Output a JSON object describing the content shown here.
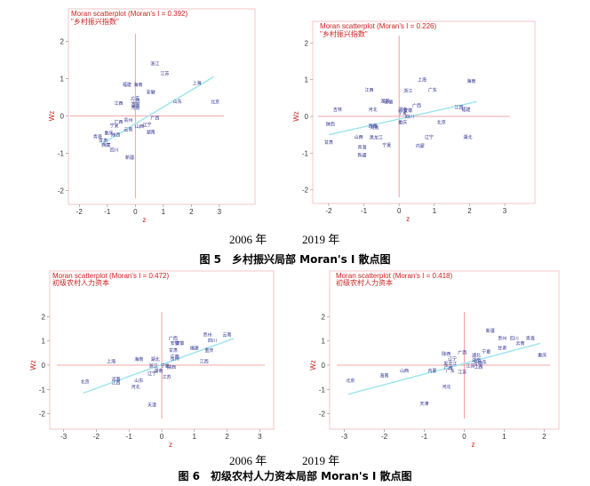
{
  "colors": {
    "frame": "#f3b9b9",
    "ref_lines": "#f08a8a",
    "fit_line": "#9be3ee",
    "points": "#2b2f8f",
    "title": "#cc2020"
  },
  "figure5": {
    "years_left": "2006 年",
    "years_right": "2019 年",
    "caption": "图 5　乡村振兴局部 Moran's I 散点图"
  },
  "figure6": {
    "years_left": "2006 年",
    "years_right": "2019 年",
    "caption": "图 6　初级农村人力资本局部 Moran's I 散点图"
  },
  "chart_data": [
    {
      "type": "scatter",
      "title": "Moran scatterplot (Moran's I = 0.392)",
      "subtitle": "\"乡村振兴指数\"",
      "xlabel": "z",
      "ylabel": "Wz",
      "xlim": [
        -2.2,
        3.1
      ],
      "ylim": [
        -2.2,
        2.2
      ],
      "xticks": [
        -2,
        -1,
        0,
        1,
        2,
        3
      ],
      "yticks": [
        -2,
        -1,
        0,
        1,
        2
      ],
      "fit": [
        [
          -1.2,
          -0.75
        ],
        [
          2.8,
          1.05
        ]
      ],
      "points": [
        {
          "x": 0.7,
          "y": 1.35,
          "label": "浙江"
        },
        {
          "x": 1.05,
          "y": 1.1,
          "label": "江苏"
        },
        {
          "x": -0.3,
          "y": 0.8,
          "label": "福建"
        },
        {
          "x": 0.1,
          "y": 0.8,
          "label": "海南"
        },
        {
          "x": 2.2,
          "y": 0.85,
          "label": "上海"
        },
        {
          "x": 0.55,
          "y": 0.6,
          "label": "安徽"
        },
        {
          "x": 0.0,
          "y": 0.43,
          "label": "广东"
        },
        {
          "x": 0.0,
          "y": 0.36,
          "label": "江西"
        },
        {
          "x": -0.6,
          "y": 0.3,
          "label": "江西"
        },
        {
          "x": 1.5,
          "y": 0.35,
          "label": "山东"
        },
        {
          "x": 2.85,
          "y": 0.33,
          "label": "北京"
        },
        {
          "x": 0.0,
          "y": 0.25,
          "label": "湖南"
        },
        {
          "x": 0.0,
          "y": 0.18,
          "label": "河南"
        },
        {
          "x": 0.7,
          "y": -0.1,
          "label": "广西"
        },
        {
          "x": -0.6,
          "y": -0.2,
          "label": "广西"
        },
        {
          "x": -0.25,
          "y": -0.15,
          "label": "贵州"
        },
        {
          "x": 0.42,
          "y": -0.27,
          "label": "辽宁"
        },
        {
          "x": 0.15,
          "y": -0.32,
          "label": "山西"
        },
        {
          "x": -0.75,
          "y": -0.3,
          "label": "宁夏"
        },
        {
          "x": -0.25,
          "y": -0.4,
          "label": "云南"
        },
        {
          "x": -0.95,
          "y": -0.5,
          "label": "重庆"
        },
        {
          "x": -0.7,
          "y": -0.55,
          "label": "陕西"
        },
        {
          "x": 0.55,
          "y": -0.48,
          "label": "湖南"
        },
        {
          "x": -1.35,
          "y": -0.6,
          "label": "青海"
        },
        {
          "x": -1.15,
          "y": -0.7,
          "label": "甘肃"
        },
        {
          "x": -1.05,
          "y": -0.82,
          "label": "西藏"
        },
        {
          "x": -0.75,
          "y": -0.95,
          "label": "四川"
        },
        {
          "x": -0.2,
          "y": -1.15,
          "label": "新疆"
        }
      ]
    },
    {
      "type": "scatter",
      "title": "Moran scatterplot (Moran's I = 0.226)",
      "subtitle": "\"乡村振兴指数\"",
      "xlabel": "z",
      "ylabel": "Wz",
      "xlim": [
        -2.2,
        3.1
      ],
      "ylim": [
        -2.2,
        2.2
      ],
      "xticks": [
        -2,
        -1,
        0,
        1,
        2,
        3
      ],
      "yticks": [
        -2,
        -1,
        0,
        1,
        2
      ],
      "fit": [
        [
          -2.0,
          -0.5
        ],
        [
          2.2,
          0.4
        ]
      ],
      "points": [
        {
          "x": 0.65,
          "y": 0.95,
          "label": "上海"
        },
        {
          "x": 2.05,
          "y": 0.92,
          "label": "海南"
        },
        {
          "x": -0.85,
          "y": 0.68,
          "label": "江西"
        },
        {
          "x": 0.25,
          "y": 0.65,
          "label": "浙江"
        },
        {
          "x": 0.95,
          "y": 0.68,
          "label": "广东"
        },
        {
          "x": -0.4,
          "y": 0.38,
          "label": "湖南"
        },
        {
          "x": -0.3,
          "y": 0.35,
          "label": "安徽"
        },
        {
          "x": 0.5,
          "y": 0.25,
          "label": "广西"
        },
        {
          "x": -1.75,
          "y": 0.15,
          "label": "吉林"
        },
        {
          "x": -0.75,
          "y": 0.15,
          "label": "河北"
        },
        {
          "x": 0.1,
          "y": 0.15,
          "label": "湖南"
        },
        {
          "x": 0.25,
          "y": 0.12,
          "label": "安徽"
        },
        {
          "x": 1.7,
          "y": 0.2,
          "label": "江西"
        },
        {
          "x": 1.9,
          "y": 0.15,
          "label": "福建"
        },
        {
          "x": 0.1,
          "y": 0.05,
          "label": "宁夏"
        },
        {
          "x": 0.3,
          "y": -0.05,
          "label": "四川"
        },
        {
          "x": 0.1,
          "y": -0.2,
          "label": "重庆"
        },
        {
          "x": 1.2,
          "y": -0.2,
          "label": "北京"
        },
        {
          "x": -1.95,
          "y": -0.25,
          "label": "陕西"
        },
        {
          "x": -0.75,
          "y": -0.3,
          "label": "西藏"
        },
        {
          "x": -0.7,
          "y": -0.35,
          "label": "河南"
        },
        {
          "x": 0.85,
          "y": -0.6,
          "label": "辽宁"
        },
        {
          "x": 1.95,
          "y": -0.6,
          "label": "湖北"
        },
        {
          "x": -1.15,
          "y": -0.6,
          "label": "山西"
        },
        {
          "x": -0.65,
          "y": -0.62,
          "label": "黑龙江"
        },
        {
          "x": -2.0,
          "y": -0.75,
          "label": "甘肃"
        },
        {
          "x": -0.35,
          "y": -0.82,
          "label": "宁夏"
        },
        {
          "x": -1.05,
          "y": -0.88,
          "label": "青海"
        },
        {
          "x": 0.6,
          "y": -0.85,
          "label": "内蒙"
        },
        {
          "x": -1.05,
          "y": -1.1,
          "label": "新疆"
        }
      ]
    },
    {
      "type": "scatter",
      "title": "Moran scatterplot (Moran's I = 0.472)",
      "subtitle": "初级农村人力资本",
      "xlabel": "z",
      "ylabel": "Wz",
      "xlim": [
        -3.1,
        3.1
      ],
      "ylim": [
        -2.2,
        2.2
      ],
      "xticks": [
        -3,
        -2,
        -1,
        0,
        1,
        2,
        3
      ],
      "yticks": [
        -2,
        -1,
        0,
        1,
        2
      ],
      "fit": [
        [
          -2.4,
          -1.15
        ],
        [
          2.2,
          1.1
        ]
      ],
      "points": [
        {
          "x": 0.35,
          "y": 1.05,
          "label": "广西"
        },
        {
          "x": 1.4,
          "y": 1.2,
          "label": "贵州"
        },
        {
          "x": 2.0,
          "y": 1.2,
          "label": "云南"
        },
        {
          "x": 1.55,
          "y": 0.95,
          "label": "四川"
        },
        {
          "x": 0.4,
          "y": 0.85,
          "label": "安徽"
        },
        {
          "x": 0.55,
          "y": 0.85,
          "label": "安徽"
        },
        {
          "x": 1.0,
          "y": 0.65,
          "label": "福建"
        },
        {
          "x": 1.45,
          "y": 0.55,
          "label": "重庆"
        },
        {
          "x": 0.35,
          "y": 0.55,
          "label": "甘肃"
        },
        {
          "x": 0.4,
          "y": 0.3,
          "label": "广西"
        },
        {
          "x": -1.55,
          "y": 0.1,
          "label": "上海"
        },
        {
          "x": -0.7,
          "y": 0.18,
          "label": "海南"
        },
        {
          "x": -0.2,
          "y": 0.18,
          "label": "湖北"
        },
        {
          "x": 0.4,
          "y": 0.2,
          "label": "贵州"
        },
        {
          "x": 1.3,
          "y": 0.1,
          "label": "江西"
        },
        {
          "x": -0.25,
          "y": -0.1,
          "label": "浙江"
        },
        {
          "x": 0.1,
          "y": -0.1,
          "label": "宁夏"
        },
        {
          "x": 0.3,
          "y": -0.15,
          "label": "陕西"
        },
        {
          "x": -0.1,
          "y": -0.3,
          "label": "湖南"
        },
        {
          "x": -0.3,
          "y": -0.4,
          "label": "辽宁"
        },
        {
          "x": 0.15,
          "y": -0.55,
          "label": "江苏"
        },
        {
          "x": -2.35,
          "y": -0.75,
          "label": "北京"
        },
        {
          "x": -1.4,
          "y": -0.65,
          "label": "河南"
        },
        {
          "x": -1.4,
          "y": -0.78,
          "label": "江西"
        },
        {
          "x": -0.7,
          "y": -0.7,
          "label": "山东"
        },
        {
          "x": -0.8,
          "y": -0.95,
          "label": "河北"
        },
        {
          "x": -0.3,
          "y": -1.7,
          "label": "天津"
        }
      ]
    },
    {
      "type": "scatter",
      "title": "Moran scatterplot (Moran's I = 0.418)",
      "subtitle": "初级农村人力资本",
      "xlabel": "z",
      "ylabel": "Wz",
      "xlim": [
        -3.1,
        2.1
      ],
      "ylim": [
        -2.2,
        2.2
      ],
      "xticks": [
        -3,
        -2,
        -1,
        0,
        1,
        2
      ],
      "yticks": [
        -2,
        -1,
        0,
        1,
        2
      ],
      "fit": [
        [
          -2.9,
          -1.2
        ],
        [
          1.9,
          0.9
        ]
      ],
      "points": [
        {
          "x": 0.65,
          "y": 1.35,
          "label": "新疆"
        },
        {
          "x": 0.95,
          "y": 1.05,
          "label": "贵州"
        },
        {
          "x": 1.25,
          "y": 1.05,
          "label": "四川"
        },
        {
          "x": 1.65,
          "y": 1.05,
          "label": "青海"
        },
        {
          "x": 1.4,
          "y": 0.85,
          "label": "云南"
        },
        {
          "x": 0.95,
          "y": 0.65,
          "label": "甘肃"
        },
        {
          "x": 1.95,
          "y": 0.35,
          "label": "重庆"
        },
        {
          "x": -0.45,
          "y": 0.4,
          "label": "陕西"
        },
        {
          "x": -0.05,
          "y": 0.45,
          "label": "广西"
        },
        {
          "x": 0.3,
          "y": 0.35,
          "label": "湖北"
        },
        {
          "x": 0.55,
          "y": 0.5,
          "label": "宁夏"
        },
        {
          "x": -0.3,
          "y": 0.2,
          "label": "辽宁"
        },
        {
          "x": 0.3,
          "y": 0.15,
          "label": "湖南"
        },
        {
          "x": 0.45,
          "y": 0.05,
          "label": "广东"
        },
        {
          "x": 0.35,
          "y": 0.0,
          "label": "安徽"
        },
        {
          "x": -0.35,
          "y": 0.0,
          "label": "黑龙江"
        },
        {
          "x": 0.15,
          "y": -0.1,
          "label": "江苏"
        },
        {
          "x": -0.4,
          "y": -0.18,
          "label": "广西"
        },
        {
          "x": 0.35,
          "y": -0.15,
          "label": "江西"
        },
        {
          "x": -1.5,
          "y": -0.3,
          "label": "山西"
        },
        {
          "x": -0.8,
          "y": -0.3,
          "label": "内蒙"
        },
        {
          "x": -0.35,
          "y": -0.3,
          "label": "广东"
        },
        {
          "x": -0.05,
          "y": -0.35,
          "label": "江苏"
        },
        {
          "x": -2.0,
          "y": -0.5,
          "label": "海南"
        },
        {
          "x": -2.85,
          "y": -0.7,
          "label": "北京"
        },
        {
          "x": -0.45,
          "y": -0.95,
          "label": "河北"
        },
        {
          "x": -1.0,
          "y": -1.65,
          "label": "天津"
        }
      ]
    }
  ]
}
